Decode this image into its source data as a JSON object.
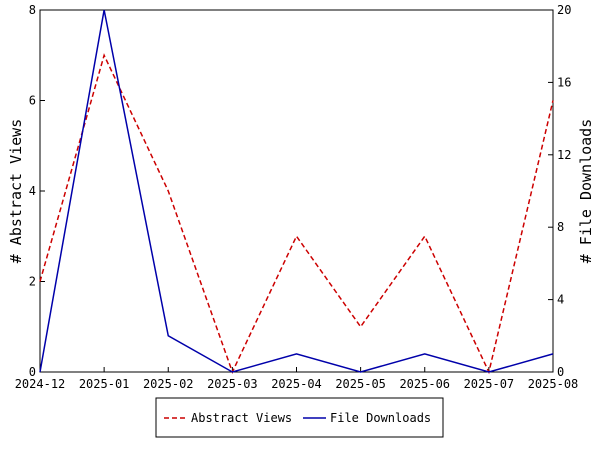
{
  "chart_data": {
    "type": "line",
    "categories": [
      "2024-12",
      "2025-01",
      "2025-02",
      "2025-03",
      "2025-04",
      "2025-05",
      "2025-06",
      "2025-07",
      "2025-08"
    ],
    "left_axis": {
      "label": "# Abstract Views",
      "range": [
        0,
        8
      ],
      "ticks": [
        "0",
        "2",
        "4",
        "6",
        "8"
      ]
    },
    "right_axis": {
      "label": "# File Downloads",
      "range": [
        0,
        20
      ],
      "ticks": [
        "0",
        "4",
        "8",
        "12",
        "16",
        "20"
      ]
    },
    "series": [
      {
        "name": "Abstract Views",
        "axis": "left",
        "color": "#cc0000",
        "dash": "dashed",
        "values": [
          2,
          7,
          4,
          0,
          3,
          1,
          3,
          0,
          6
        ]
      },
      {
        "name": "File Downloads",
        "axis": "right",
        "color": "#0000aa",
        "dash": "solid",
        "values": [
          0,
          20,
          2,
          0,
          1,
          0,
          1,
          0,
          1
        ]
      }
    ],
    "grid": false,
    "legend_position": "bottom-center"
  }
}
